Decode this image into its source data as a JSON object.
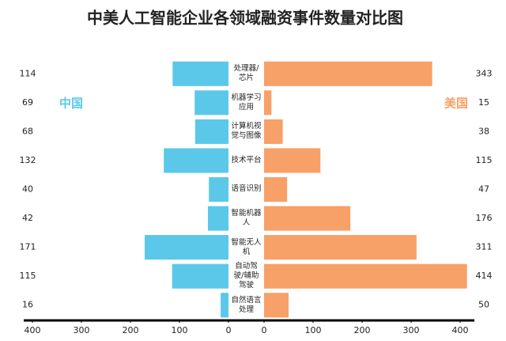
{
  "chart_data": {
    "type": "butterfly-bar",
    "title": "中美人工智能企业各领域融资事件数量对比图",
    "categories": [
      "处理器/芯片",
      "机器学习应用",
      "计算机视觉与图像",
      "技术平台",
      "语音识别",
      "智能机器人",
      "智能无人机",
      "自动驾驶/辅助驾驶",
      "自然语言处理"
    ],
    "series": [
      {
        "name": "中国",
        "color": "#5bc8ea",
        "values": [
          114,
          69,
          68,
          132,
          40,
          42,
          171,
          115,
          16
        ]
      },
      {
        "name": "美国",
        "color": "#f7a067",
        "values": [
          343,
          15,
          38,
          115,
          47,
          176,
          311,
          414,
          50
        ]
      }
    ],
    "xlim": [
      0,
      400
    ],
    "xticks": [
      0,
      100,
      200,
      300,
      400
    ]
  }
}
